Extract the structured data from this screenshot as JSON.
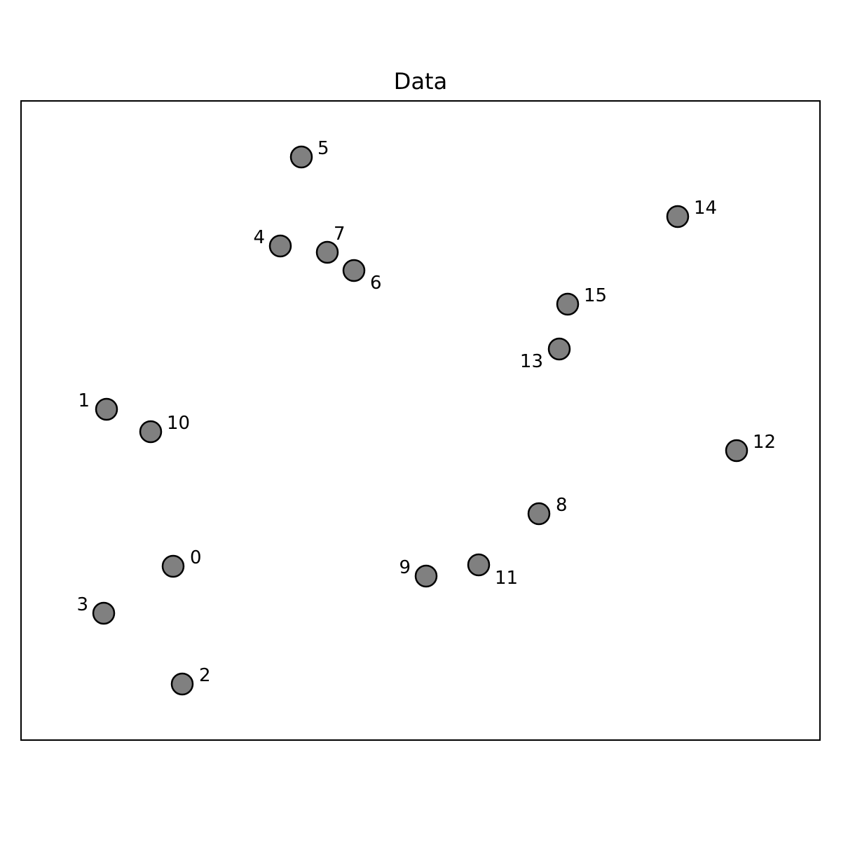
{
  "chart_data": {
    "type": "scatter",
    "title": "Data",
    "xlabel": "",
    "ylabel": "",
    "xlim": [
      0,
      1140
    ],
    "ylim": [
      0,
      912
    ],
    "grid": false,
    "axes_ticks": false,
    "marker_color": "#808080",
    "marker_edge_color": "#000000",
    "points": [
      {
        "label": "0",
        "x": 217,
        "y": 248
      },
      {
        "label": "1",
        "x": 122,
        "y": 472
      },
      {
        "label": "2",
        "x": 230,
        "y": 80
      },
      {
        "label": "3",
        "x": 118,
        "y": 181
      },
      {
        "label": "4",
        "x": 370,
        "y": 705
      },
      {
        "label": "5",
        "x": 400,
        "y": 832
      },
      {
        "label": "6",
        "x": 475,
        "y": 670
      },
      {
        "label": "7",
        "x": 437,
        "y": 696
      },
      {
        "label": "8",
        "x": 739,
        "y": 323
      },
      {
        "label": "9",
        "x": 578,
        "y": 234
      },
      {
        "label": "10",
        "x": 185,
        "y": 440
      },
      {
        "label": "11",
        "x": 653,
        "y": 250
      },
      {
        "label": "12",
        "x": 1021,
        "y": 413
      },
      {
        "label": "13",
        "x": 768,
        "y": 558
      },
      {
        "label": "14",
        "x": 937,
        "y": 747
      },
      {
        "label": "15",
        "x": 780,
        "y": 622
      }
    ]
  }
}
